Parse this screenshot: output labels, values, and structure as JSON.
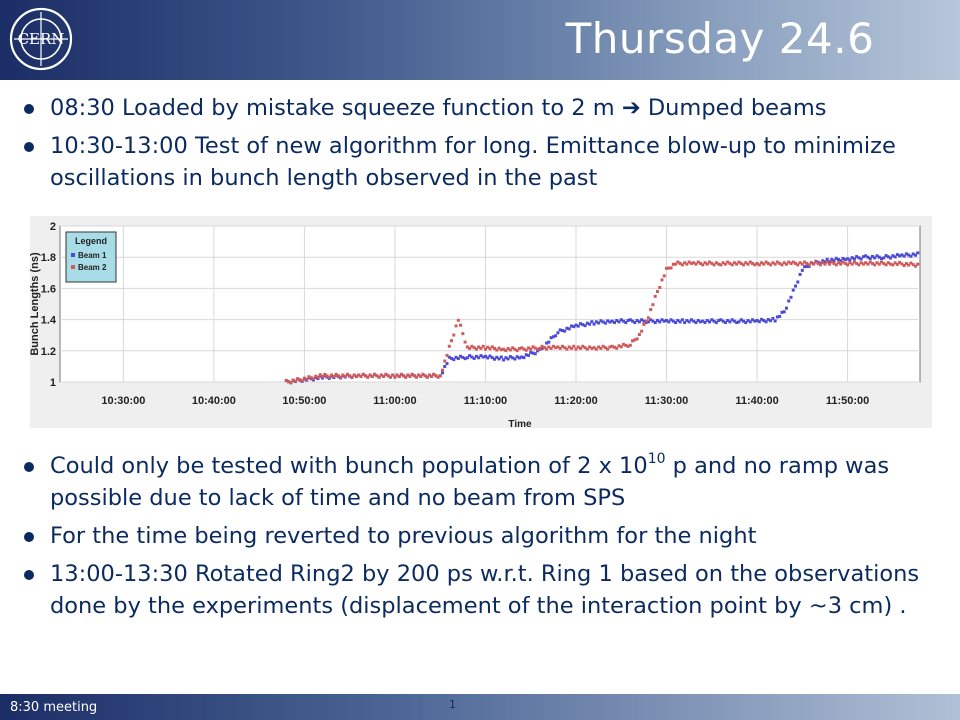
{
  "slide": {
    "title": "Thursday 24.6",
    "logo_text": "CERN",
    "footer_label": "8:30 meeting",
    "page_number": "1"
  },
  "bullets_top": [
    {
      "pre": "08:30 Loaded by mistake squeeze function to 2 m ",
      "arrow": "➔",
      "post": " Dumped beams"
    },
    {
      "text": "10:30-13:00 Test of new algorithm for long. Emittance blow-up to minimize oscillations in bunch length observed in the past"
    }
  ],
  "bullets_bottom": [
    {
      "pre": "Could only be tested with bunch population of 2 x 10",
      "sup": "10",
      "post": " p and no ramp was possible due to lack of time and no beam from SPS"
    },
    {
      "text": "For the time being reverted to previous algorithm for the night"
    },
    {
      "text": "13:00-13:30 Rotated Ring2 by 200 ps w.r.t. Ring 1 based on the observations done by the experiments (displacement of the interaction point by ~3 cm) ."
    }
  ],
  "colors": {
    "text": "#0b2a5f",
    "beam1": "#4b4bd6",
    "beam2": "#d05a5a",
    "legend_bg": "#a8dce6"
  },
  "chart_data": {
    "type": "scatter",
    "xlabel": "Time",
    "ylabel": "Bunch Lengths (ns)",
    "ylim": [
      1,
      2
    ],
    "xlim": [
      "10:23:00",
      "11:58:00"
    ],
    "yticks": [
      "1",
      "1.2",
      "1.4",
      "1.6",
      "1.8",
      "2"
    ],
    "xticks": [
      "10:30:00",
      "10:40:00",
      "10:50:00",
      "11:00:00",
      "11:10:00",
      "11:20:00",
      "11:30:00",
      "11:40:00",
      "11:50:00"
    ],
    "grid": true,
    "legend": {
      "title": "Legend",
      "placement": "top-left"
    },
    "series": [
      {
        "name": "Beam 1",
        "color": "#4b4bd6",
        "points": [
          [
            "10:48:00",
            1.0
          ],
          [
            "10:52:00",
            1.03
          ],
          [
            "10:56:00",
            1.04
          ],
          [
            "11:00:00",
            1.04
          ],
          [
            "11:05:00",
            1.04
          ],
          [
            "11:06:00",
            1.15
          ],
          [
            "11:08:00",
            1.16
          ],
          [
            "11:10:00",
            1.16
          ],
          [
            "11:12:00",
            1.15
          ],
          [
            "11:14:00",
            1.16
          ],
          [
            "11:16:00",
            1.2
          ],
          [
            "11:18:00",
            1.32
          ],
          [
            "11:20:00",
            1.36
          ],
          [
            "11:22:00",
            1.38
          ],
          [
            "11:24:00",
            1.39
          ],
          [
            "11:26:00",
            1.39
          ],
          [
            "11:28:00",
            1.39
          ],
          [
            "11:30:00",
            1.39
          ],
          [
            "11:32:00",
            1.39
          ],
          [
            "11:34:00",
            1.39
          ],
          [
            "11:36:00",
            1.39
          ],
          [
            "11:38:00",
            1.39
          ],
          [
            "11:40:00",
            1.39
          ],
          [
            "11:42:00",
            1.4
          ],
          [
            "11:43:00",
            1.45
          ],
          [
            "11:44:00",
            1.58
          ],
          [
            "11:45:00",
            1.72
          ],
          [
            "11:46:00",
            1.76
          ],
          [
            "11:48:00",
            1.78
          ],
          [
            "11:50:00",
            1.79
          ],
          [
            "11:52:00",
            1.8
          ],
          [
            "11:54:00",
            1.8
          ],
          [
            "11:56:00",
            1.81
          ],
          [
            "11:58:00",
            1.82
          ]
        ]
      },
      {
        "name": "Beam 2",
        "color": "#d05a5a",
        "points": [
          [
            "10:48:00",
            1.0
          ],
          [
            "10:52:00",
            1.04
          ],
          [
            "10:56:00",
            1.04
          ],
          [
            "11:00:00",
            1.04
          ],
          [
            "11:05:00",
            1.04
          ],
          [
            "11:06:00",
            1.22
          ],
          [
            "11:07:00",
            1.4
          ],
          [
            "11:08:00",
            1.22
          ],
          [
            "11:10:00",
            1.22
          ],
          [
            "11:12:00",
            1.21
          ],
          [
            "11:14:00",
            1.21
          ],
          [
            "11:16:00",
            1.22
          ],
          [
            "11:18:00",
            1.22
          ],
          [
            "11:20:00",
            1.22
          ],
          [
            "11:22:00",
            1.22
          ],
          [
            "11:24:00",
            1.22
          ],
          [
            "11:26:00",
            1.24
          ],
          [
            "11:27:00",
            1.3
          ],
          [
            "11:28:00",
            1.42
          ],
          [
            "11:29:00",
            1.58
          ],
          [
            "11:30:00",
            1.72
          ],
          [
            "11:31:00",
            1.76
          ],
          [
            "11:33:00",
            1.76
          ],
          [
            "11:36:00",
            1.76
          ],
          [
            "11:40:00",
            1.76
          ],
          [
            "11:44:00",
            1.76
          ],
          [
            "11:48:00",
            1.76
          ],
          [
            "11:52:00",
            1.76
          ],
          [
            "11:55:00",
            1.76
          ],
          [
            "11:58:00",
            1.75
          ]
        ]
      }
    ]
  }
}
